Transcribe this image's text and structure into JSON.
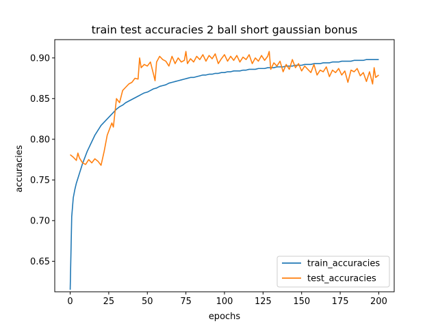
{
  "chart_data": {
    "type": "line",
    "title": "train test accuracies 2 ball short gaussian bonus",
    "xlabel": "epochs",
    "ylabel": "accuracies",
    "xlim": [
      -10,
      210
    ],
    "ylim": [
      0.6125,
      0.9225
    ],
    "xticks": [
      0,
      25,
      50,
      75,
      100,
      125,
      150,
      175,
      200
    ],
    "yticks": [
      0.65,
      0.7,
      0.75,
      0.8,
      0.85,
      0.9
    ],
    "ytick_labels": [
      "0.65",
      "0.70",
      "0.75",
      "0.80",
      "0.85",
      "0.90"
    ],
    "grid": false,
    "legend_position": "lower right",
    "series": [
      {
        "name": "train_accuracies",
        "color": "#1f77b4",
        "x": [
          0,
          1,
          2,
          3,
          4,
          5,
          6,
          7,
          8,
          9,
          10,
          11,
          12,
          13,
          14,
          15,
          16,
          17,
          18,
          19,
          20,
          21,
          22,
          23,
          24,
          25,
          26,
          27,
          28,
          29,
          30,
          32,
          34,
          36,
          38,
          40,
          42,
          44,
          46,
          48,
          50,
          52,
          54,
          56,
          58,
          60,
          62,
          64,
          66,
          68,
          70,
          72,
          74,
          76,
          78,
          80,
          82,
          84,
          86,
          88,
          90,
          92,
          94,
          96,
          98,
          100,
          102,
          104,
          106,
          108,
          110,
          112,
          114,
          116,
          118,
          120,
          122,
          124,
          126,
          128,
          130,
          132,
          134,
          136,
          138,
          140,
          142,
          144,
          146,
          148,
          150,
          152,
          154,
          156,
          158,
          160,
          162,
          164,
          166,
          168,
          170,
          172,
          174,
          176,
          178,
          180,
          182,
          184,
          186,
          188,
          190,
          192,
          194,
          196,
          198,
          200
        ],
        "values": [
          0.615,
          0.705,
          0.728,
          0.738,
          0.746,
          0.752,
          0.758,
          0.764,
          0.77,
          0.775,
          0.78,
          0.785,
          0.789,
          0.793,
          0.797,
          0.801,
          0.805,
          0.808,
          0.811,
          0.814,
          0.817,
          0.819,
          0.821,
          0.823,
          0.825,
          0.827,
          0.829,
          0.831,
          0.833,
          0.835,
          0.837,
          0.84,
          0.842,
          0.845,
          0.847,
          0.849,
          0.851,
          0.853,
          0.855,
          0.857,
          0.858,
          0.86,
          0.862,
          0.863,
          0.865,
          0.866,
          0.867,
          0.869,
          0.87,
          0.871,
          0.872,
          0.873,
          0.874,
          0.875,
          0.876,
          0.876,
          0.877,
          0.878,
          0.879,
          0.879,
          0.88,
          0.88,
          0.881,
          0.881,
          0.882,
          0.882,
          0.883,
          0.883,
          0.884,
          0.884,
          0.884,
          0.885,
          0.885,
          0.886,
          0.886,
          0.886,
          0.887,
          0.887,
          0.887,
          0.888,
          0.888,
          0.888,
          0.889,
          0.889,
          0.889,
          0.89,
          0.89,
          0.89,
          0.891,
          0.891,
          0.891,
          0.892,
          0.892,
          0.892,
          0.893,
          0.893,
          0.893,
          0.894,
          0.894,
          0.894,
          0.895,
          0.895,
          0.895,
          0.896,
          0.896,
          0.896,
          0.896,
          0.897,
          0.897,
          0.897,
          0.897,
          0.898,
          0.898,
          0.898,
          0.898,
          0.898
        ]
      },
      {
        "name": "test_accuracies",
        "color": "#ff7f0e",
        "x": [
          0,
          2,
          4,
          5,
          6,
          8,
          10,
          12,
          14,
          16,
          18,
          20,
          22,
          24,
          26,
          27,
          28,
          30,
          32,
          34,
          36,
          38,
          40,
          42,
          44,
          45,
          46,
          48,
          50,
          52,
          54,
          55,
          56,
          58,
          60,
          62,
          64,
          66,
          68,
          70,
          72,
          74,
          75,
          76,
          78,
          80,
          82,
          84,
          86,
          88,
          90,
          92,
          94,
          96,
          98,
          100,
          102,
          104,
          106,
          108,
          110,
          112,
          114,
          116,
          118,
          120,
          122,
          124,
          126,
          128,
          129,
          130,
          132,
          134,
          136,
          138,
          140,
          142,
          144,
          146,
          148,
          150,
          152,
          154,
          156,
          158,
          160,
          162,
          164,
          166,
          168,
          170,
          172,
          174,
          176,
          178,
          180,
          182,
          184,
          186,
          188,
          190,
          192,
          194,
          196,
          197,
          198,
          200
        ],
        "values": [
          0.781,
          0.778,
          0.774,
          0.783,
          0.777,
          0.771,
          0.769,
          0.775,
          0.771,
          0.776,
          0.773,
          0.768,
          0.785,
          0.805,
          0.815,
          0.82,
          0.815,
          0.85,
          0.845,
          0.86,
          0.864,
          0.868,
          0.87,
          0.875,
          0.874,
          0.9,
          0.888,
          0.892,
          0.89,
          0.895,
          0.88,
          0.872,
          0.895,
          0.902,
          0.898,
          0.896,
          0.89,
          0.902,
          0.893,
          0.9,
          0.895,
          0.897,
          0.908,
          0.893,
          0.899,
          0.895,
          0.902,
          0.898,
          0.904,
          0.896,
          0.903,
          0.899,
          0.905,
          0.893,
          0.899,
          0.904,
          0.896,
          0.902,
          0.897,
          0.903,
          0.895,
          0.901,
          0.898,
          0.904,
          0.893,
          0.9,
          0.896,
          0.903,
          0.897,
          0.902,
          0.908,
          0.886,
          0.894,
          0.89,
          0.896,
          0.883,
          0.892,
          0.886,
          0.898,
          0.888,
          0.893,
          0.884,
          0.89,
          0.886,
          0.882,
          0.892,
          0.879,
          0.885,
          0.883,
          0.889,
          0.877,
          0.885,
          0.882,
          0.887,
          0.879,
          0.884,
          0.87,
          0.885,
          0.883,
          0.887,
          0.878,
          0.882,
          0.871,
          0.883,
          0.868,
          0.888,
          0.876,
          0.879
        ]
      }
    ]
  }
}
